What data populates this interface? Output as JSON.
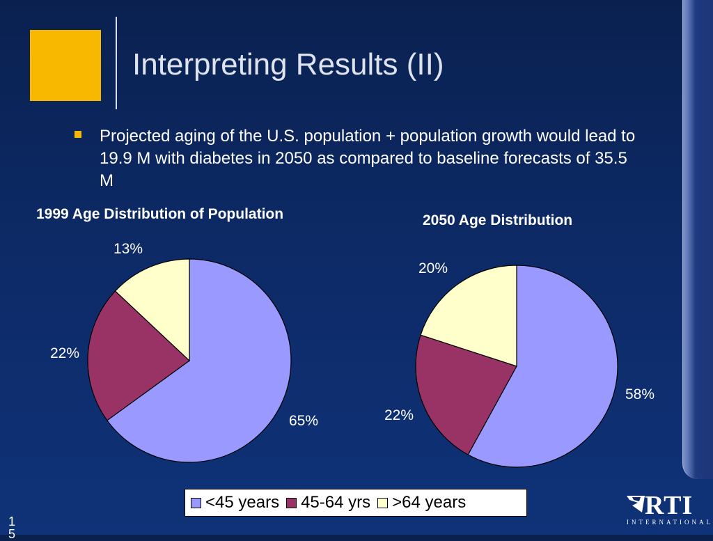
{
  "slide": {
    "title": "Interpreting Results (II)",
    "bullet": "Projected aging of the U.S. population + population growth would lead to 19.9 M with diabetes in 2050 as compared to baseline forecasts of 35.5 M",
    "slide_number": "15",
    "logo": {
      "text": "RTI",
      "subtitle": "INTERNATIONAL"
    },
    "accent_color": "#f9b800"
  },
  "chart_data": [
    {
      "type": "pie",
      "title": "1999 Age Distribution of Population",
      "categories": [
        "<45 years",
        "45-64 yrs",
        ">64 years"
      ],
      "values": [
        65,
        22,
        13
      ],
      "labels": [
        "65%",
        "22%",
        "13%"
      ],
      "colors": [
        "#9999ff",
        "#993366",
        "#ffffcc"
      ]
    },
    {
      "type": "pie",
      "title": "2050 Age Distribution",
      "categories": [
        "<45 years",
        "45-64 yrs",
        ">64 years"
      ],
      "values": [
        58,
        22,
        20
      ],
      "labels": [
        "58%",
        "22%",
        "20%"
      ],
      "colors": [
        "#9999ff",
        "#993366",
        "#ffffcc"
      ]
    }
  ],
  "legend": {
    "position": "bottom",
    "items": [
      {
        "label": "<45 years",
        "color": "#9999ff"
      },
      {
        "label": "45-64 yrs",
        "color": "#993366"
      },
      {
        "label": ">64 years",
        "color": "#ffffcc"
      }
    ]
  }
}
